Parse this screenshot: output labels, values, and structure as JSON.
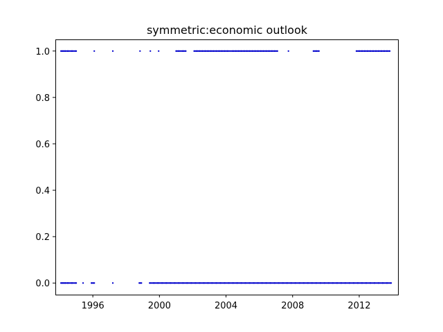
{
  "chart_data": {
    "type": "scatter",
    "title": "symmetric:economic outlook",
    "xlabel": "",
    "ylabel": "",
    "x_axis_type": "date",
    "xlim": [
      "1993-10-01",
      "2014-05-01"
    ],
    "ylim": [
      -0.05,
      1.05
    ],
    "x_tick_labels": [
      "1996",
      "2000",
      "2004",
      "2008",
      "2012"
    ],
    "x_tick_values": [
      "1996-01-01",
      "2000-01-01",
      "2004-01-01",
      "2008-01-01",
      "2012-01-01"
    ],
    "y_tick_labels": [
      "0.0",
      "0.2",
      "0.4",
      "0.6",
      "0.8",
      "1.0"
    ],
    "y_tick_values": [
      0.0,
      0.2,
      0.4,
      0.6,
      0.8,
      1.0
    ],
    "grid": false,
    "marker_color": "#0000cc",
    "series": [
      {
        "y": 1.0,
        "x": [
          "1994-02-01",
          "1994-03-15",
          "1994-05-01",
          "1994-07-01",
          "1994-10-01",
          "1995-01-01",
          "1996-02-01",
          "1997-03-15",
          "1998-11-01",
          "1999-06-15",
          "1999-12-15",
          "2001-01-01",
          "2001-03-01",
          "2001-06-01",
          "2001-08-01",
          "2002-02-01",
          "2002-04-01",
          "2002-06-01",
          "2002-08-01",
          "2002-10-01",
          "2002-12-01",
          "2003-02-01",
          "2003-04-01",
          "2003-06-01",
          "2003-08-01",
          "2003-10-01",
          "2003-12-01",
          "2004-02-01",
          "2004-06-01",
          "2004-08-01",
          "2004-10-01",
          "2004-12-01",
          "2005-02-01",
          "2005-04-01",
          "2005-06-01",
          "2005-08-01",
          "2005-10-01",
          "2005-12-01",
          "2006-02-01",
          "2006-04-01",
          "2006-06-01",
          "2006-08-01",
          "2006-10-01",
          "2006-12-01",
          "2007-02-01",
          "2007-10-01",
          "2009-04-01",
          "2009-06-01",
          "2009-08-01",
          "2011-11-01",
          "2012-01-01",
          "2012-03-01",
          "2012-05-01",
          "2012-07-01",
          "2012-09-01",
          "2012-11-01",
          "2013-01-01",
          "2013-03-01",
          "2013-05-01",
          "2013-07-01",
          "2013-09-01",
          "2013-11-01"
        ]
      },
      {
        "y": 0.0,
        "x": [
          "1994-02-01",
          "1994-03-15",
          "1994-05-01",
          "1994-07-01",
          "1994-10-01",
          "1995-01-01",
          "1995-06-01",
          "1995-12-01",
          "1996-02-01",
          "1997-03-15",
          "1998-10-15",
          "1998-12-01",
          "1999-06-01",
          "1999-09-01",
          "1999-12-01",
          "2000-03-01",
          "2000-06-01",
          "2000-09-01",
          "2000-12-01",
          "2001-03-01",
          "2001-06-01",
          "2001-09-01",
          "2001-12-01",
          "2002-03-01",
          "2002-06-01",
          "2002-09-01",
          "2002-12-01",
          "2003-03-01",
          "2003-06-01",
          "2003-09-01",
          "2003-12-01",
          "2004-03-01",
          "2004-06-01",
          "2004-09-01",
          "2004-12-01",
          "2005-03-01",
          "2005-06-01",
          "2005-09-01",
          "2005-12-01",
          "2006-03-01",
          "2006-06-01",
          "2006-09-01",
          "2006-12-01",
          "2007-03-01",
          "2007-06-01",
          "2007-09-01",
          "2007-12-01",
          "2008-03-01",
          "2008-06-01",
          "2008-09-01",
          "2008-12-01",
          "2009-03-01",
          "2009-06-01",
          "2009-09-01",
          "2009-12-01",
          "2010-03-01",
          "2010-06-01",
          "2010-09-01",
          "2010-12-01",
          "2011-03-01",
          "2011-06-01",
          "2011-09-01",
          "2011-12-01",
          "2012-03-01",
          "2012-06-01",
          "2012-09-01",
          "2012-12-01",
          "2013-03-01",
          "2013-06-01",
          "2013-09-01",
          "2013-12-01"
        ]
      }
    ]
  }
}
